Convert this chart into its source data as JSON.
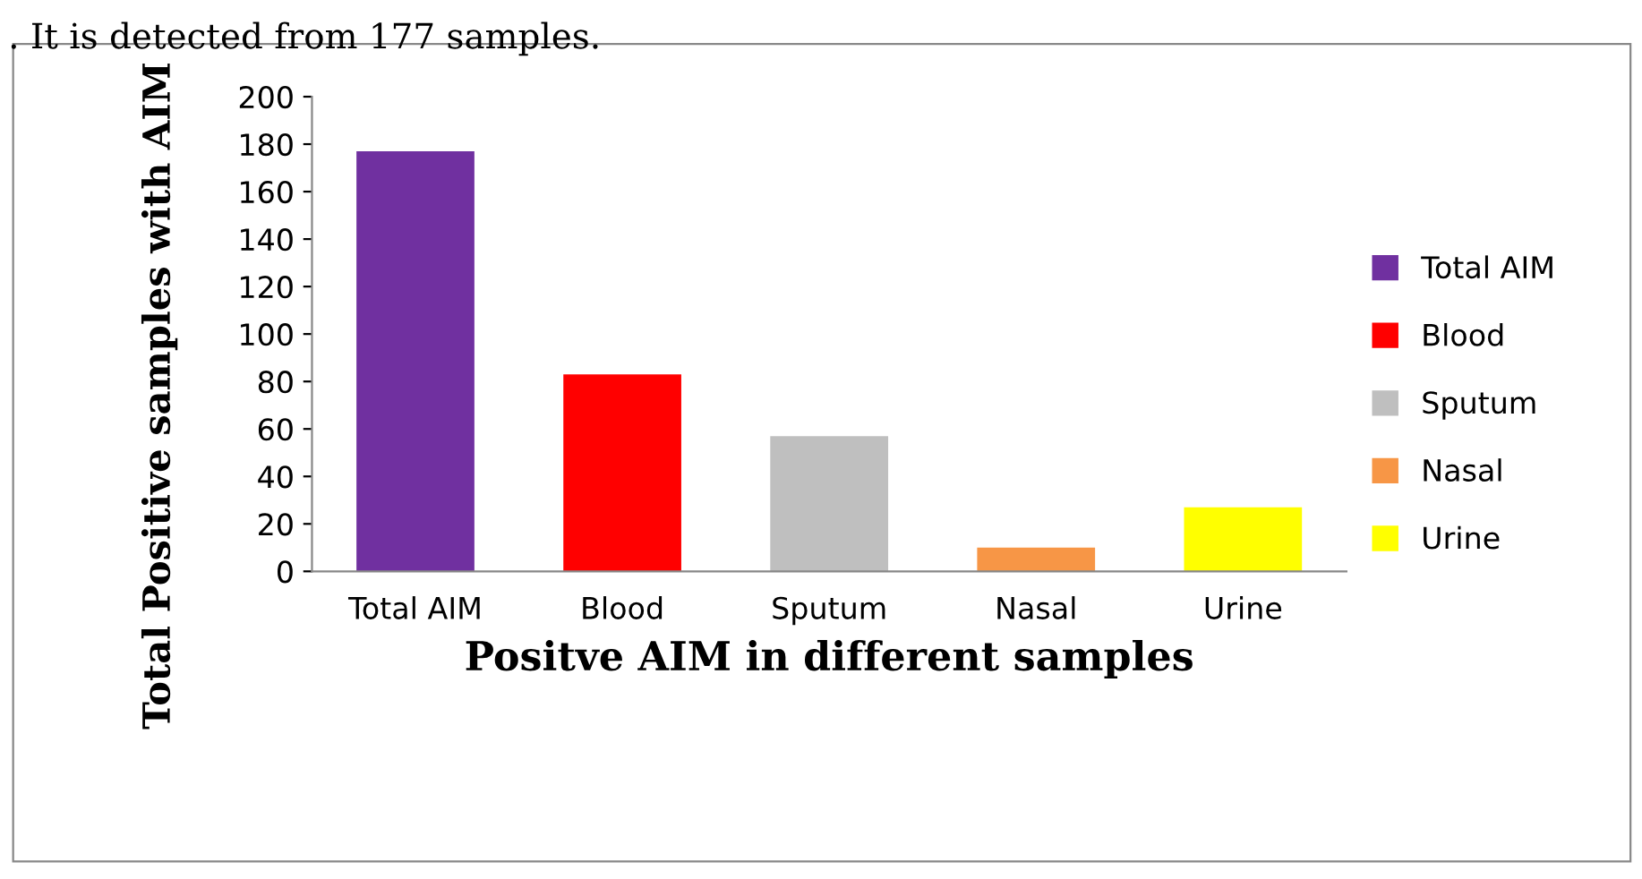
{
  "chart_data": {
    "type": "bar",
    "xlabel": "Positve AIM in different samples",
    "ylabel": "Total Positive samples with AIM",
    "annotations": [
      ". It is detected from 177 samples."
    ],
    "categories": [
      "Total AIM",
      "Blood",
      "Sputum",
      "Nasal",
      "Urine"
    ],
    "series": [
      {
        "name": "Total AIM",
        "color": "#7030a0",
        "values": [
          177,
          null,
          null,
          null,
          null
        ]
      },
      {
        "name": "Blood",
        "color": "#ff0000",
        "values": [
          null,
          83,
          null,
          null,
          null
        ]
      },
      {
        "name": "Sputum",
        "color": "#bfbfbf",
        "values": [
          null,
          null,
          57,
          null,
          null
        ]
      },
      {
        "name": "Nasal",
        "color": "#f79646",
        "values": [
          null,
          null,
          null,
          10,
          null
        ]
      },
      {
        "name": "Urine",
        "color": "#ffff00",
        "values": [
          null,
          null,
          null,
          null,
          27
        ]
      }
    ],
    "ylim": [
      0,
      200
    ],
    "yticks": [
      0,
      20,
      40,
      60,
      80,
      100,
      120,
      140,
      160,
      180,
      200
    ],
    "grid": false,
    "legend": "right"
  }
}
